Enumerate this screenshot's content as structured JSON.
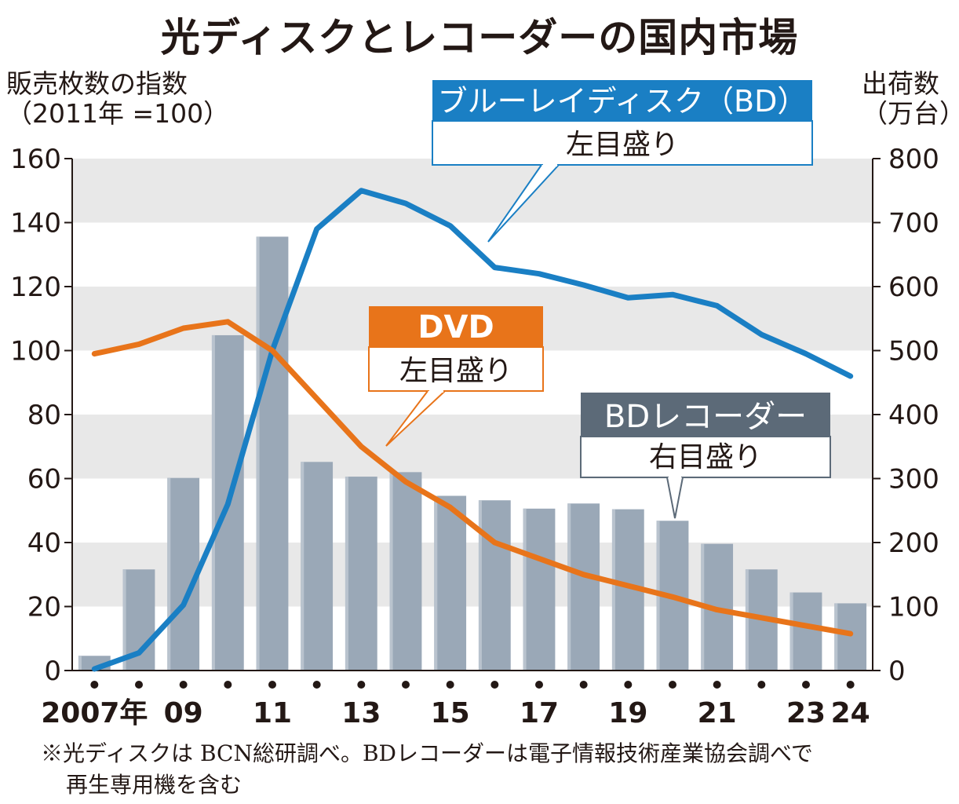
{
  "page": {
    "title": "光ディスクとレコーダーの国内市場",
    "left_axis_title_line1": "販売枚数の指数",
    "left_axis_title_line2": "（2011年 =100）",
    "right_axis_title_line1": "出荷数",
    "right_axis_title_line2": "（万台）",
    "footnote_line1": "※光ディスクは BCN総研調べ。BDレコーダーは電子情報技術産業協会調べで",
    "footnote_line2": "再生専用機を含む"
  },
  "colors": {
    "bd": "#1a7fc4",
    "dvd": "#e8741a",
    "recorder": "#9aa8b7",
    "recorder_label_bg": "#5c6a78",
    "grid_band": "#e8e8e8",
    "axis": "#231815"
  },
  "chart_data": {
    "type": "bar+line",
    "x": [
      2007,
      2008,
      2009,
      2010,
      2011,
      2012,
      2013,
      2014,
      2015,
      2016,
      2017,
      2018,
      2019,
      2020,
      2021,
      2022,
      2023,
      2024
    ],
    "x_tick_labels": [
      "2007年",
      "",
      "09",
      "",
      "11",
      "",
      "13",
      "",
      "15",
      "",
      "17",
      "",
      "19",
      "",
      "21",
      "",
      "23",
      "24"
    ],
    "left_axis": {
      "label": "販売枚数の指数（2011年 =100）",
      "ylim": [
        0,
        160
      ],
      "ticks": [
        0,
        20,
        40,
        60,
        80,
        100,
        120,
        140,
        160
      ]
    },
    "right_axis": {
      "label": "出荷数（万台）",
      "ylim": [
        0,
        800
      ],
      "ticks": [
        0,
        100,
        200,
        300,
        400,
        500,
        600,
        700,
        800
      ]
    },
    "series": [
      {
        "name": "BDレコーダー",
        "sub_label": "右目盛り",
        "type": "bar",
        "axis": "right",
        "values": [
          23,
          158,
          301,
          524,
          678,
          326,
          303,
          310,
          273,
          266,
          253,
          261,
          252,
          234,
          198,
          158,
          122,
          105
        ]
      },
      {
        "name": "ブルーレイディスク（BD）",
        "sub_label": "左目盛り",
        "type": "line",
        "axis": "left",
        "values": [
          0.5,
          5.5,
          20.5,
          52,
          100,
          138,
          150,
          146,
          139,
          126,
          124,
          120.5,
          116.5,
          117.5,
          114,
          105,
          99,
          92
        ]
      },
      {
        "name": "DVD",
        "sub_label": "左目盛り",
        "type": "line",
        "axis": "left",
        "values": [
          99,
          102,
          107,
          109,
          100,
          85,
          70,
          59,
          51,
          40,
          35,
          30,
          26.5,
          23,
          19,
          16.5,
          14,
          11.5
        ]
      }
    ]
  }
}
